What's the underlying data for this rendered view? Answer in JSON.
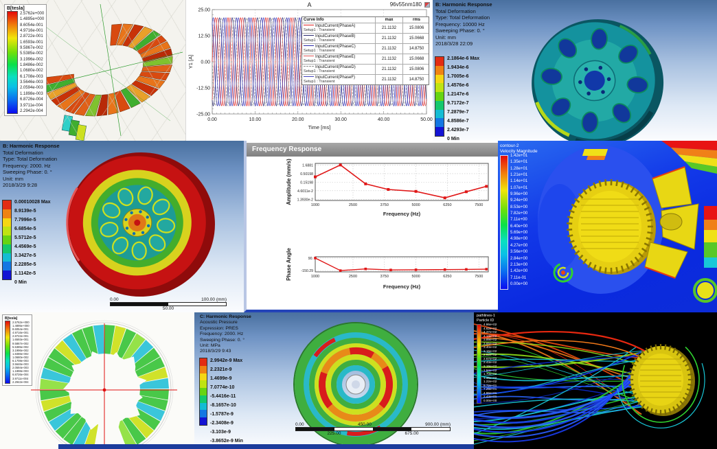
{
  "colors": {
    "ansys_bands": [
      "#e32c13",
      "#ef8313",
      "#f5d713",
      "#bfe313",
      "#66d413",
      "#13c86e",
      "#13bcd4",
      "#1377e3",
      "#1313d4"
    ],
    "accent_red": "#e01616",
    "navy_strip": "#1c3c9c"
  },
  "panels": {
    "maxwell_torus": {
      "legend_title": "B[tesla]",
      "legend_values": [
        "2.5762e+000",
        "1.4895e+000",
        "8.6054e-001",
        "4.9716e-001",
        "2.8722e-001",
        "1.6593e-001",
        "9.5867e-002",
        "5.5385e-002",
        "3.1996e-002",
        "1.8486e-002",
        "1.0680e-002",
        "6.1708e-003",
        "3.5646e-003",
        "2.0594e-003",
        "1.1898e-003",
        "6.8726e-004",
        "3.9711e-004",
        "2.2942e-004"
      ]
    },
    "harmonic_wheel_blue": {
      "info_lines": [
        "B: Harmonic Response",
        "Total Deformation",
        "Type: Total Deformation",
        "Frequency: 10000 Hz",
        "Sweeping Phase: 0. °",
        "Unit: mm",
        "2018/3/28 22:09"
      ],
      "legend_values": [
        "2.1864e-6 Max",
        "1.9434e-6",
        "1.7005e-6",
        "1.4576e-6",
        "1.2147e-6",
        "9.7172e-7",
        "7.2879e-7",
        "4.8586e-7",
        "2.4293e-7",
        "0 Min"
      ]
    },
    "harmonic_wheel_red": {
      "info_lines": [
        "B: Harmonic Response",
        "Total Deformation",
        "Type: Total Deformation",
        "Frequency: 2000. Hz",
        "Sweeping Phase: 0. °",
        "Unit: mm",
        "2018/3/29 9:28"
      ],
      "legend_values": [
        "0.00010028 Max",
        "8.9139e-5",
        "7.7996e-5",
        "6.6854e-5",
        "5.5712e-5",
        "4.4569e-5",
        "3.3427e-5",
        "2.2285e-5",
        "1.1142e-5",
        "0 Min"
      ],
      "ruler": {
        "top_left": "0.00",
        "top_right": "100.00 (mm)",
        "bottom_center": "50.00"
      }
    },
    "frequency_response": {
      "window_title": "Frequency Response"
    },
    "cfd_contour": {
      "legend_title_lines": [
        "contour-2",
        "Velocity Magnitude"
      ],
      "legend_values": [
        "1.42e+01",
        "1.35e+01",
        "1.28e+01",
        "1.21e+01",
        "1.14e+01",
        "1.07e+01",
        "9.96e+00",
        "9.24e+00",
        "8.53e+00",
        "7.82e+00",
        "7.11e+00",
        "6.40e+00",
        "5.69e+00",
        "4.98e+00",
        "4.27e+00",
        "3.56e+00",
        "2.84e+00",
        "2.13e+00",
        "1.42e+00",
        "7.11e-01",
        "0.00e+00"
      ]
    },
    "maxwell_rotor": {
      "legend_title": "B[tesla]",
      "legend_values": [
        "2.5762e+000",
        "1.4895e+000",
        "8.6054e-001",
        "4.9716e-001",
        "2.8722e-001",
        "1.6593e-001",
        "9.5867e-002",
        "5.5385e-002",
        "3.1996e-002",
        "1.8486e-002",
        "1.0680e-002",
        "6.1708e-003",
        "3.5646e-003",
        "2.0594e-003",
        "1.1898e-003",
        "6.8726e-004",
        "3.9711e-004",
        "2.2942e-004"
      ]
    },
    "acoustic_disk": {
      "info_lines": [
        "C: Harmonic Response",
        "Acoustic Pressure",
        "Expression: PRES",
        "Frequency: 2000. Hz",
        "Sweeping Phase: 0. °",
        "Unit: MPa",
        "2018/3/29 9:43"
      ],
      "legend_values": [
        "2.9942e-9 Max",
        "2.2321e-9",
        "1.4699e-9",
        "7.0774e-10",
        "-5.4416e-11",
        "-8.1657e-10",
        "-1.5787e-9",
        "-2.3408e-9",
        "-3.103e-9",
        "-3.8652e-9 Min"
      ],
      "ruler": {
        "top": [
          "0.00",
          "450.00",
          "900.00 (mm)"
        ],
        "bottom": [
          "225.00",
          "675.00"
        ]
      }
    },
    "pathlines": {
      "legend_title_lines": [
        "pathlines-1",
        "Particle ID"
      ],
      "legend_values": [
        "4.86e+02",
        "4.62e+02",
        "4.37e+02",
        "4.13e+02",
        "3.89e+02",
        "3.65e+02",
        "3.40e+02",
        "3.16e+02",
        "2.92e+02",
        "2.67e+02",
        "2.43e+02",
        "2.19e+02",
        "1.94e+02",
        "1.70e+02",
        "1.46e+02",
        "1.22e+02",
        "9.72e+01",
        "7.29e+01",
        "4.86e+01",
        "2.43e+01",
        "0.00e+00"
      ]
    }
  },
  "chart_data": [
    {
      "id": "transient_currents",
      "type": "line",
      "title": "A",
      "corner_label": "96v55nm180",
      "xlabel": "Time [ms]",
      "ylabel": "Y1 [A]",
      "xlim": [
        0,
        50
      ],
      "ylim": [
        -25,
        25
      ],
      "xticks": [
        "0.00",
        "10.00",
        "20.00",
        "30.00",
        "40.00",
        "50.00"
      ],
      "xtick_values": [
        0,
        10,
        20,
        30,
        40,
        50
      ],
      "yticks": [
        "25.00",
        "12.50",
        "0.00",
        "-12.50",
        "-25.00"
      ],
      "ytick_values": [
        25,
        12.5,
        0,
        -12.5,
        -25
      ],
      "grid": true,
      "waveform": {
        "amplitude": 21.1132,
        "period_ms": 2.94
      },
      "legend_table_headers": [
        "Curve Info",
        "max",
        "rms"
      ],
      "series": [
        {
          "name": "InputCurrent(PhaseA)",
          "setup": "Setup1 : Transient",
          "max": "21.1132",
          "rms": "15.0806",
          "color": "#e02020",
          "dash": false,
          "phase_deg": 0
        },
        {
          "name": "InputCurrent(PhaseB)",
          "setup": "Setup1 : Transient",
          "max": "21.1132",
          "rms": "15.0668",
          "color": "#27276e",
          "dash": false,
          "phase_deg": -120
        },
        {
          "name": "InputCurrent(PhaseC)",
          "setup": "Setup1 : Transient",
          "max": "21.1132",
          "rms": "14.8750",
          "color": "#2a2aa8",
          "dash": false,
          "phase_deg": -240
        },
        {
          "name": "InputCurrent(PhaseE)",
          "setup": "Setup1 : Transient",
          "max": "21.1132",
          "rms": "15.0668",
          "color": "#e05454",
          "dash": false,
          "phase_deg": -60
        },
        {
          "name": "InputCurrent(PhaseD)",
          "setup": "Setup1 : Transient",
          "max": "21.1132",
          "rms": "15.0806",
          "color": "#8a8a8a",
          "dash": true,
          "phase_deg": -180
        },
        {
          "name": "InputCurrent(PhaseF)",
          "setup": "Setup1 : Transient",
          "max": "21.1132",
          "rms": "14.8750",
          "color": "#4444c0",
          "dash": false,
          "phase_deg": -300
        }
      ]
    },
    {
      "id": "frequency_response_amplitude",
      "type": "line",
      "yscale": "log",
      "xlabel": "Frequency (Hz)",
      "ylabel": "Amplitude (mm/s)",
      "xticks": [
        "1000",
        "2500",
        "3750",
        "5000",
        "6250",
        "7500"
      ],
      "xtick_values": [
        1000,
        2500,
        3750,
        5000,
        6250,
        7500
      ],
      "ytick_labels": [
        "1.6881",
        "0.50198",
        "0.15198",
        "4.6011e-2",
        "1.3930e-2"
      ],
      "ytick_values": [
        1.6881,
        0.50198,
        0.15198,
        0.046011,
        0.01393
      ],
      "x": [
        1000,
        2000,
        3000,
        3900,
        5000,
        6150,
        7000,
        7800
      ],
      "y": [
        0.32,
        1.6881,
        0.12,
        0.055,
        0.042,
        0.017,
        0.04,
        0.085
      ],
      "color": "#e01616",
      "grid": true
    },
    {
      "id": "frequency_response_phase",
      "type": "line",
      "xlabel": "Frequency (Hz)",
      "ylabel": "Phase Angle",
      "xticks": [
        "1000",
        "2500",
        "3750",
        "5000",
        "6250",
        "7500"
      ],
      "xtick_values": [
        1000,
        2500,
        3750,
        5000,
        6250,
        7500
      ],
      "ytick_labels": [
        "90.",
        "-150.29"
      ],
      "ytick_values": [
        90,
        -150.29
      ],
      "ylim": [
        -175,
        115
      ],
      "x": [
        1000,
        2000,
        3000,
        4000,
        5000,
        6150,
        7000,
        7800
      ],
      "y": [
        90,
        -150.29,
        -118,
        -138,
        -134,
        -131,
        -127,
        -123
      ],
      "color": "#e01616",
      "grid": true
    }
  ]
}
